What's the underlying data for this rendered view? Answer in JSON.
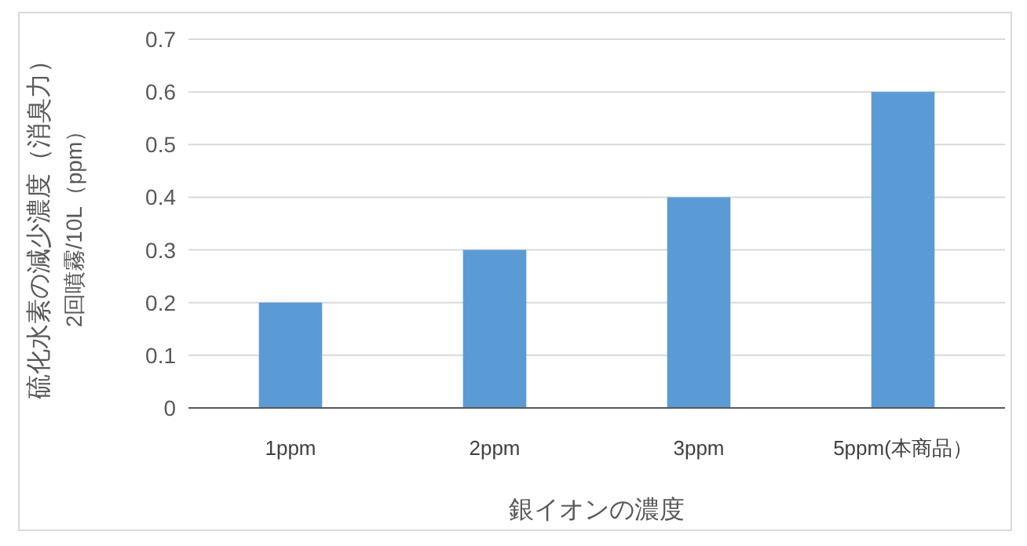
{
  "chart_data": {
    "type": "bar",
    "categories": [
      "1ppm",
      "2ppm",
      "3ppm",
      "5ppm(本商品）"
    ],
    "values": [
      0.2,
      0.3,
      0.4,
      0.6
    ],
    "color": "#5b9bd5",
    "xlabel": "銀イオンの濃度",
    "ylabel": "硫化水素の減少濃度（消臭力）\n2回噴霧/10L（ppm）",
    "ylim": [
      0,
      0.7
    ],
    "yticks": [
      0,
      0.1,
      0.2,
      0.3,
      0.4,
      0.5,
      0.6,
      0.7
    ],
    "grid": "y"
  }
}
